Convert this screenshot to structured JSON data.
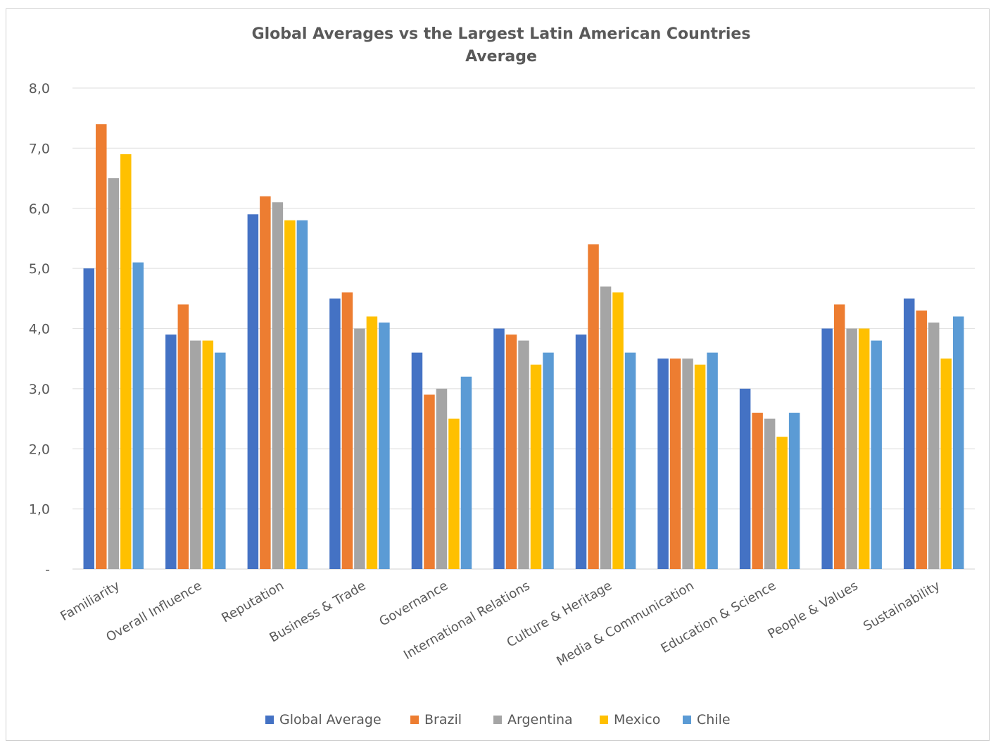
{
  "chart_data": {
    "type": "bar",
    "title": "Global Averages vs the Largest Latin American Countries",
    "subtitle": "Average",
    "xlabel": "",
    "ylabel": "",
    "ylim": [
      0,
      8
    ],
    "y_ticks": [
      {
        "value": 0,
        "label": "-"
      },
      {
        "value": 1,
        "label": "1,0"
      },
      {
        "value": 2,
        "label": "2,0"
      },
      {
        "value": 3,
        "label": "3,0"
      },
      {
        "value": 4,
        "label": "4,0"
      },
      {
        "value": 5,
        "label": "5,0"
      },
      {
        "value": 6,
        "label": "6,0"
      },
      {
        "value": 7,
        "label": "7,0"
      },
      {
        "value": 8,
        "label": "8,0"
      }
    ],
    "grid": true,
    "legend_position": "bottom",
    "categories": [
      "Familiarity",
      "Overall Influence",
      "Reputation",
      "Business & Trade",
      "Governance",
      "International Relations",
      "Culture & Heritage",
      "Media & Communication",
      "Education & Science",
      "People & Values",
      "Sustainability"
    ],
    "series": [
      {
        "name": "Global Average",
        "color": "#4472C4",
        "values": [
          5.0,
          3.9,
          5.9,
          4.5,
          3.6,
          4.0,
          3.9,
          3.5,
          3.0,
          4.0,
          4.5
        ]
      },
      {
        "name": "Brazil",
        "color": "#ED7D31",
        "values": [
          7.4,
          4.4,
          6.2,
          4.6,
          2.9,
          3.9,
          5.4,
          3.5,
          2.6,
          4.4,
          4.3
        ]
      },
      {
        "name": "Argentina",
        "color": "#A5A5A5",
        "values": [
          6.5,
          3.8,
          6.1,
          4.0,
          3.0,
          3.8,
          4.7,
          3.5,
          2.5,
          4.0,
          4.1
        ]
      },
      {
        "name": "Mexico",
        "color": "#FFC000",
        "values": [
          6.9,
          3.8,
          5.8,
          4.2,
          2.5,
          3.4,
          4.6,
          3.4,
          2.2,
          4.0,
          3.5
        ]
      },
      {
        "name": "Chile",
        "color": "#5B9BD5",
        "values": [
          5.1,
          3.6,
          5.8,
          4.1,
          3.2,
          3.6,
          3.6,
          3.6,
          2.6,
          3.8,
          4.2
        ]
      }
    ]
  }
}
